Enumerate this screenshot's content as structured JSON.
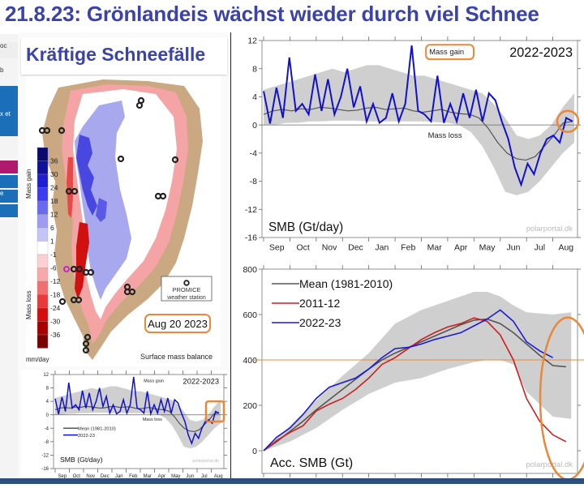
{
  "header": {
    "title": "21.8.23: Grönlandeis wächst wieder durch viel Schnee"
  },
  "left_strip": {
    "items": [
      "oc",
      "b",
      "x et",
      "",
      "",
      "e",
      ""
    ]
  },
  "left_panel": {
    "headline": "Kräftige Schneefälle",
    "map": {
      "colorbar_labels": [
        "36",
        "30",
        "24",
        "18",
        "12",
        "6",
        "1",
        "-1",
        "-6",
        "-12",
        "-18",
        "-24",
        "-30",
        "-36"
      ],
      "colorbar_colors": [
        "#0a0a6e",
        "#10109a",
        "#1f1fd0",
        "#3a3af0",
        "#6a6af0",
        "#9c9cf2",
        "#c4c4f6",
        "#ffffff",
        "#fcd0d0",
        "#f8a8a8",
        "#f07070",
        "#e83a3a",
        "#d40e0e",
        "#a80000",
        "#7a0000"
      ],
      "gain_label": "Mass gain",
      "loss_label": "Mass loss",
      "unit_label": "mm/day",
      "station_legend_line1": "PROMICE",
      "station_legend_line2": "weather station",
      "date_label": "Aug 20 2023",
      "caption": "Surface mass balance"
    }
  },
  "highlight_color": "#e8883a",
  "chart_data": [
    {
      "type": "line",
      "id": "daily-smb",
      "title": "2022-2023",
      "ylabel": "SMB (Gt/day)",
      "xlabel": "",
      "ylim": [
        -16,
        12
      ],
      "yticks": [
        12,
        8,
        4,
        0,
        -4,
        -8,
        -12,
        -16
      ],
      "categories": [
        "Sep",
        "Oct",
        "Nov",
        "Dec",
        "Jan",
        "Feb",
        "Mar",
        "Apr",
        "May",
        "Jun",
        "Jul",
        "Aug"
      ],
      "annotations": {
        "gain": "Mass gain",
        "loss": "Mass loss",
        "source": "polarportal.dk"
      },
      "legend": [
        {
          "name": "Mean (1981-2010)",
          "color": "#555555"
        },
        {
          "name": "2022-23",
          "color": "#1010d0"
        }
      ],
      "series": [
        {
          "name": "Mean (1981-2010)",
          "color": "#555555",
          "values": [
            1.5,
            2.0,
            2.2,
            2.0,
            2.3,
            2.2,
            2.5,
            2.4,
            2.2,
            2.0,
            2.1,
            2.4,
            2.5,
            2.2,
            2.3,
            2.4,
            2.0,
            1.8,
            2.0,
            2.2,
            1.8,
            1.6,
            1.5,
            1.0,
            -0.5,
            -2.5,
            -4.0,
            -4.8,
            -5.0,
            -4.5,
            -3.0,
            -1.5,
            0.3,
            0.5
          ]
        },
        {
          "name": "2022-23",
          "color": "#1010d0",
          "values": [
            4.8,
            0.2,
            5.3,
            1.0,
            9.6,
            2.0,
            3.0,
            1.5,
            7.2,
            2.0,
            6.5,
            1.5,
            4.0,
            8.0,
            2.5,
            5.5,
            0.5,
            3.0,
            0.3,
            1.0,
            4.5,
            0.5,
            3.0,
            11.3,
            2.0,
            1.5,
            0.5,
            7.0,
            0.3,
            3.0,
            0.5,
            4.5,
            1.0,
            5.0,
            0.5,
            4.5,
            3.5,
            0.5,
            -2.0,
            -6.0,
            -8.5,
            -5.5,
            -7.0,
            -4.0,
            -2.0,
            -1.5,
            -2.5,
            1.0,
            0.5
          ]
        },
        {
          "name": "Range",
          "color": "#cccccc",
          "upper": [
            5.0,
            5.5,
            6.0,
            6.5,
            7.0,
            7.5,
            8.0,
            7.5,
            8.0,
            8.5,
            8.5,
            8.0,
            7.5,
            7.0,
            7.0,
            6.5,
            6.0,
            5.5,
            5.0,
            4.5,
            3.0,
            1.0,
            -1.5,
            -2.0,
            -1.5,
            0.0,
            2.5,
            4.5
          ],
          "lower": [
            0.0,
            0.0,
            0.3,
            0.3,
            0.5,
            0.5,
            0.6,
            0.6,
            0.6,
            0.5,
            0.5,
            0.5,
            0.5,
            0.5,
            0.5,
            0.4,
            0.3,
            0.0,
            -1.0,
            -3.0,
            -6.0,
            -9.5,
            -10.0,
            -9.5,
            -8.0,
            -6.0,
            -4.0,
            -2.5
          ]
        }
      ],
      "highlight": "circle around latest values (Aug)"
    },
    {
      "type": "line",
      "id": "accumulated-smb",
      "title": "",
      "ylabel": "Acc. SMB (Gt)",
      "xlabel": "",
      "ylim": [
        -100,
        800
      ],
      "yticks": [
        800,
        600,
        400,
        200,
        0
      ],
      "categories": [
        "Sep",
        "Oct",
        "Nov",
        "Dec",
        "Jan",
        "Feb",
        "Mar",
        "Apr",
        "May",
        "Jun",
        "Jul",
        "Aug"
      ],
      "annotations": {
        "source": "polarportal.dk",
        "reference_line": 400
      },
      "legend": [
        {
          "name": "Mean (1981-2010)",
          "color": "#555555"
        },
        {
          "name": "2011-12",
          "color": "#cc1f1f"
        },
        {
          "name": "2022-23",
          "color": "#1a1ad8"
        }
      ],
      "series": [
        {
          "name": "Mean (1981-2010)",
          "color": "#555555",
          "x": [
            0,
            0.5,
            1,
            1.5,
            2,
            2.5,
            3,
            3.5,
            4,
            4.5,
            5,
            5.5,
            6,
            6.5,
            7,
            7.5,
            8,
            8.5,
            9,
            9.5,
            10,
            10.5,
            11,
            11.5
          ],
          "values": [
            0,
            40,
            85,
            130,
            180,
            225,
            270,
            315,
            360,
            400,
            430,
            455,
            480,
            505,
            530,
            555,
            575,
            580,
            560,
            520,
            470,
            420,
            375,
            370
          ]
        },
        {
          "name": "2011-12",
          "color": "#cc1f1f",
          "x": [
            0,
            0.5,
            1,
            1.5,
            2,
            2.5,
            3,
            3.5,
            4,
            4.5,
            5,
            5.5,
            6,
            6.5,
            7,
            7.5,
            8,
            8.5,
            9,
            9.5,
            10,
            10.5,
            11,
            11.5
          ],
          "values": [
            0,
            45,
            80,
            110,
            175,
            205,
            230,
            270,
            320,
            380,
            410,
            450,
            490,
            520,
            545,
            560,
            585,
            570,
            510,
            400,
            230,
            130,
            70,
            40
          ]
        },
        {
          "name": "2022-23",
          "color": "#1a1ad8",
          "x": [
            0,
            0.5,
            1,
            1.5,
            2,
            2.5,
            3,
            3.5,
            4,
            4.5,
            5,
            5.5,
            6,
            6.5,
            7,
            7.5,
            8,
            8.5,
            9,
            9.5,
            10,
            10.5,
            11
          ],
          "values": [
            0,
            60,
            100,
            160,
            230,
            280,
            300,
            320,
            360,
            410,
            450,
            455,
            470,
            490,
            505,
            520,
            550,
            580,
            620,
            570,
            480,
            440,
            410
          ]
        },
        {
          "name": "Range",
          "color": "#cccccc",
          "x": [
            0,
            1,
            2,
            3,
            4,
            5,
            6,
            7,
            8,
            8.5,
            9,
            9.5,
            10,
            11,
            11.7
          ],
          "upper": [
            0,
            110,
            220,
            330,
            430,
            560,
            620,
            660,
            700,
            700,
            680,
            640,
            610,
            600,
            610
          ],
          "lower": [
            0,
            40,
            100,
            180,
            250,
            300,
            320,
            360,
            390,
            400,
            400,
            380,
            260,
            150,
            140
          ]
        }
      ],
      "highlight": "ellipse around Jul-Aug values"
    },
    {
      "type": "line",
      "id": "daily-smb-small",
      "title": "2022-2023",
      "ylabel": "SMB (Gt/day)",
      "ylim": [
        -16,
        12
      ],
      "yticks": [
        12,
        8,
        4,
        0,
        -4,
        -8,
        -12,
        -16
      ],
      "categories": [
        "Sep",
        "Oct",
        "Nov",
        "Dec",
        "Jan",
        "Feb",
        "Mar",
        "Apr",
        "May",
        "Jun",
        "Jul",
        "Aug"
      ],
      "annotations": {
        "gain": "Mass gain",
        "loss": "Mass loss",
        "source": "polarportal.dk"
      },
      "legend": [
        {
          "name": "Mean (1981-2010)",
          "color": "#555555"
        },
        {
          "name": "2022-23",
          "color": "#1010d0"
        }
      ]
    }
  ]
}
